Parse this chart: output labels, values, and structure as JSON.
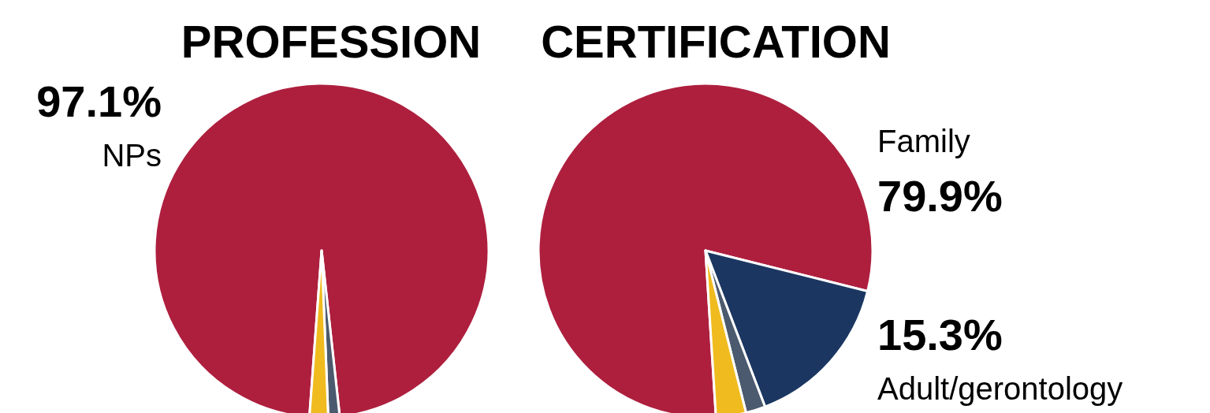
{
  "chart_data": [
    {
      "type": "pie",
      "title": "PROFESSION",
      "categories": [
        "NPs",
        null,
        null
      ],
      "values": [
        97.1,
        1.1,
        1.8
      ],
      "colors": [
        "#ae1f3e",
        "#4b5a6e",
        "#f0bb1f"
      ],
      "value_labels": [
        "97.1%",
        null,
        null
      ]
    },
    {
      "type": "pie",
      "title": "CERTIFICATION",
      "categories": [
        "Family",
        "Adult/gerontology",
        null,
        null
      ],
      "values": [
        79.9,
        15.3,
        1.9,
        2.9
      ],
      "colors": [
        "#ae1f3e",
        "#1b3761",
        "#4b5a6e",
        "#f0bb1f"
      ],
      "value_labels": [
        "79.9%",
        "15.3%",
        null,
        null
      ]
    }
  ]
}
